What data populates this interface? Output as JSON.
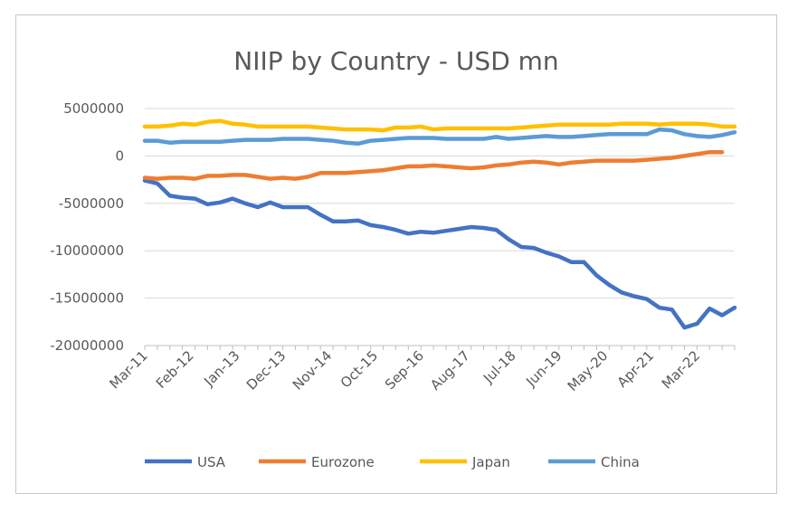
{
  "chart_data": {
    "type": "line",
    "title": "NIIP by Country - USD mn",
    "xlabel": "",
    "ylabel": "",
    "ylim": [
      -20000000,
      5000000
    ],
    "yticks": [
      5000000,
      0,
      -5000000,
      -10000000,
      -15000000,
      -20000000
    ],
    "ytick_labels": [
      "5000000",
      "0",
      "-5000000",
      "-10000000",
      "-15000000",
      "-20000000"
    ],
    "x_tick_labels": [
      "Mar-11",
      "Feb-12",
      "Jan-13",
      "Dec-13",
      "Nov-14",
      "Oct-15",
      "Sep-16",
      "Aug-17",
      "Jul-18",
      "Jun-19",
      "May-20",
      "Apr-21",
      "Mar-22"
    ],
    "x": [
      "Mar-11",
      "Jun-11",
      "Sep-11",
      "Dec-11",
      "Mar-12",
      "Jun-12",
      "Sep-12",
      "Dec-12",
      "Mar-13",
      "Jun-13",
      "Sep-13",
      "Dec-13",
      "Mar-14",
      "Jun-14",
      "Sep-14",
      "Dec-14",
      "Mar-15",
      "Jun-15",
      "Sep-15",
      "Dec-15",
      "Mar-16",
      "Jun-16",
      "Sep-16",
      "Dec-16",
      "Mar-17",
      "Jun-17",
      "Sep-17",
      "Dec-17",
      "Mar-18",
      "Jun-18",
      "Sep-18",
      "Dec-18",
      "Mar-19",
      "Jun-19",
      "Sep-19",
      "Dec-19",
      "Mar-20",
      "Jun-20",
      "Sep-20",
      "Dec-20",
      "Mar-21",
      "Jun-21",
      "Sep-21",
      "Dec-21",
      "Mar-22",
      "Jun-22",
      "Sep-22",
      "Dec-22"
    ],
    "legend_position": "bottom",
    "grid": "horizontal",
    "series": [
      {
        "name": "USA",
        "color": "#4472C4",
        "values": [
          -2600000,
          -2900000,
          -4200000,
          -4400000,
          -4500000,
          -5100000,
          -4900000,
          -4500000,
          -5000000,
          -5400000,
          -4900000,
          -5400000,
          -5400000,
          -5400000,
          -6200000,
          -6900000,
          -6900000,
          -6800000,
          -7300000,
          -7500000,
          -7800000,
          -8200000,
          -8000000,
          -8100000,
          -7900000,
          -7700000,
          -7500000,
          -7600000,
          -7800000,
          -8800000,
          -9600000,
          -9700000,
          -10200000,
          -10600000,
          -11200000,
          -11200000,
          -12600000,
          -13600000,
          -14400000,
          -14800000,
          -15100000,
          -16000000,
          -16200000,
          -18100000,
          -17700000,
          -16100000,
          -16800000,
          -16000000
        ]
      },
      {
        "name": "Eurozone",
        "color": "#ED7D31",
        "values": [
          -2300000,
          -2400000,
          -2300000,
          -2300000,
          -2400000,
          -2100000,
          -2100000,
          -2000000,
          -2000000,
          -2200000,
          -2400000,
          -2300000,
          -2400000,
          -2200000,
          -1800000,
          -1800000,
          -1800000,
          -1700000,
          -1600000,
          -1500000,
          -1300000,
          -1100000,
          -1100000,
          -1000000,
          -1100000,
          -1200000,
          -1300000,
          -1200000,
          -1000000,
          -900000,
          -700000,
          -600000,
          -700000,
          -900000,
          -700000,
          -600000,
          -500000,
          -500000,
          -500000,
          -500000,
          -400000,
          -300000,
          -200000,
          0,
          200000,
          400000,
          400000,
          null
        ]
      },
      {
        "name": "Japan",
        "color": "#FFC000",
        "values": [
          3100000,
          3100000,
          3200000,
          3400000,
          3300000,
          3600000,
          3700000,
          3400000,
          3300000,
          3100000,
          3100000,
          3100000,
          3100000,
          3100000,
          3000000,
          2900000,
          2800000,
          2800000,
          2800000,
          2700000,
          3000000,
          3000000,
          3100000,
          2800000,
          2900000,
          2900000,
          2900000,
          2900000,
          2900000,
          2900000,
          3000000,
          3100000,
          3200000,
          3300000,
          3300000,
          3300000,
          3300000,
          3300000,
          3400000,
          3400000,
          3400000,
          3300000,
          3400000,
          3400000,
          3400000,
          3300000,
          3100000,
          3100000
        ]
      },
      {
        "name": "China",
        "color": "#5B9BD5",
        "values": [
          1600000,
          1600000,
          1400000,
          1500000,
          1500000,
          1500000,
          1500000,
          1600000,
          1700000,
          1700000,
          1700000,
          1800000,
          1800000,
          1800000,
          1700000,
          1600000,
          1400000,
          1300000,
          1600000,
          1700000,
          1800000,
          1900000,
          1900000,
          1900000,
          1800000,
          1800000,
          1800000,
          1800000,
          2000000,
          1800000,
          1900000,
          2000000,
          2100000,
          2000000,
          2000000,
          2100000,
          2200000,
          2300000,
          2300000,
          2300000,
          2300000,
          2800000,
          2700000,
          2300000,
          2100000,
          2000000,
          2200000,
          2500000
        ]
      }
    ]
  }
}
